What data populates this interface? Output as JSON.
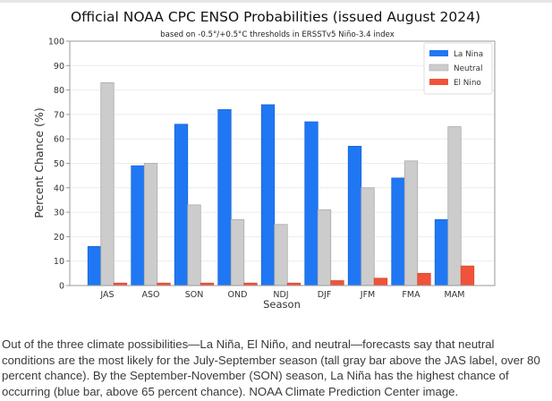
{
  "chart_data": {
    "type": "bar",
    "title": "Official NOAA CPC ENSO Probabilities (issued August 2024)",
    "subtitle": "based on -0.5°/+0.5°C thresholds in ERSSTv5 Niño-3.4 index",
    "xlabel": "Season",
    "ylabel": "Percent Chance (%)",
    "ylim": [
      0,
      100
    ],
    "yticks": [
      0,
      10,
      20,
      30,
      40,
      50,
      60,
      70,
      80,
      90,
      100
    ],
    "grid": true,
    "legend_position": "top-right",
    "categories": [
      "JAS",
      "ASO",
      "SON",
      "OND",
      "NDJ",
      "DJF",
      "JFM",
      "FMA",
      "MAM"
    ],
    "series": [
      {
        "name": "La Nina",
        "color": "#1f77f4",
        "values": [
          16,
          49,
          66,
          72,
          74,
          67,
          57,
          44,
          27
        ]
      },
      {
        "name": "Neutral",
        "color": "#cccccc",
        "values": [
          83,
          50,
          33,
          27,
          25,
          31,
          40,
          51,
          65
        ]
      },
      {
        "name": "El Nino",
        "color": "#f0533a",
        "values": [
          1,
          1,
          1,
          1,
          1,
          2,
          3,
          5,
          8
        ]
      }
    ]
  },
  "caption": "Out of the three climate possibilities—La Niña, El Niño, and neutral—forecasts say that neutral conditions are the most likely for the July-September season (tall gray bar above the JAS label, over 80 percent chance). By the September-November (SON) season, La Niña has the highest chance of occurring (blue bar, above 65 percent chance). NOAA Climate Prediction Center image."
}
